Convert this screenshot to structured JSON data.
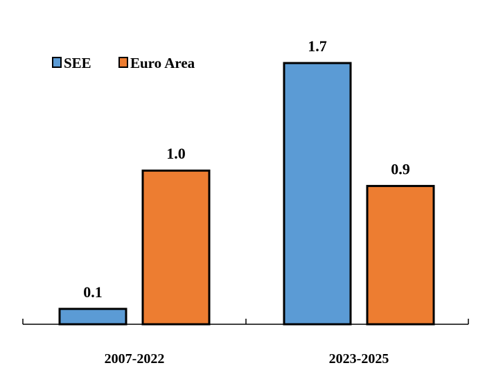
{
  "chart_data": {
    "type": "bar",
    "categories": [
      "2007-2022",
      "2023-2025"
    ],
    "series": [
      {
        "name": "SEE",
        "values": [
          0.1,
          1.7
        ],
        "color": "#5B9BD5"
      },
      {
        "name": "Euro Area",
        "values": [
          1.0,
          0.9
        ],
        "color": "#ED7D31"
      }
    ],
    "value_labels": [
      [
        "0.1",
        "1.7"
      ],
      [
        "1.0",
        "0.9"
      ]
    ],
    "title": "",
    "xlabel": "",
    "ylabel": "",
    "ylim": [
      0,
      1.7
    ],
    "grid": false,
    "legend_position": "top-left"
  }
}
